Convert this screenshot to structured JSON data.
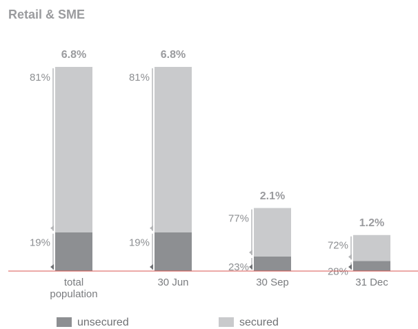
{
  "chart_data": {
    "type": "stacked-bar",
    "title": "Retail & SME",
    "categories": [
      "total population",
      "30 Jun",
      "30 Sep",
      "31 Dec"
    ],
    "totals": {
      "values": [
        6.8,
        6.8,
        2.1,
        1.2
      ],
      "value_labels": [
        "6.8%",
        "6.8%",
        "2.1%",
        "1.2%"
      ]
    },
    "series": [
      {
        "name": "unsecured",
        "color": "#8d8f92",
        "values": [
          19,
          19,
          23,
          28
        ],
        "value_labels": [
          "19%",
          "19%",
          "23%",
          "28%"
        ]
      },
      {
        "name": "secured",
        "color": "#c9cacc",
        "values": [
          81,
          81,
          77,
          72
        ],
        "value_labels": [
          "81%",
          "81%",
          "77%",
          "72%"
        ]
      }
    ],
    "legend": "bottom",
    "baseline_color": "#d9534f"
  }
}
